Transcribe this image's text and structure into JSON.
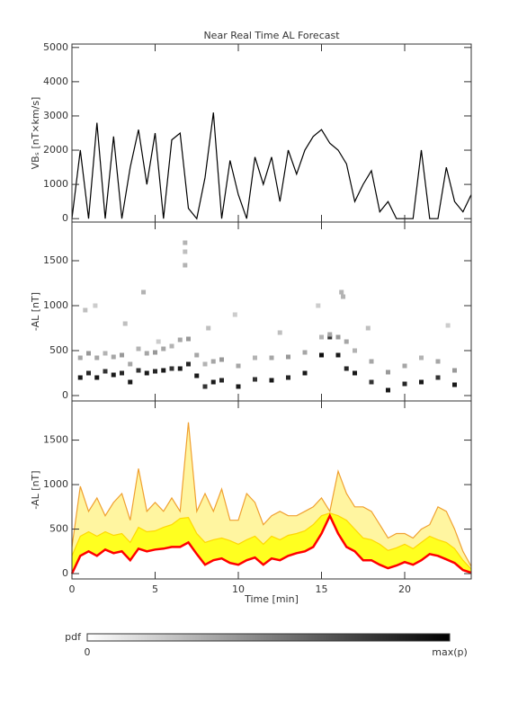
{
  "chart_data": [
    {
      "type": "line",
      "title": "Near Real Time AL Forecast",
      "y_label": "VBₛ [nT×km/s]",
      "xlim": [
        0,
        24
      ],
      "ylim": [
        -100,
        5100
      ],
      "yticks": [
        0,
        1000,
        2000,
        3000,
        4000,
        5000
      ],
      "color": "#000000",
      "x": [
        0,
        0.5,
        1,
        1.5,
        2,
        2.5,
        3,
        3.5,
        4,
        4.5,
        5,
        5.5,
        6,
        6.5,
        7,
        7.5,
        8,
        8.5,
        9,
        9.5,
        10,
        10.5,
        11,
        11.5,
        12,
        12.5,
        13,
        13.5,
        14,
        14.5,
        15,
        15.5,
        16,
        16.5,
        17,
        17.5,
        18,
        18.5,
        19,
        19.5,
        20,
        20.5,
        21,
        21.5,
        22,
        22.5,
        23,
        23.5,
        24
      ],
      "values": [
        0,
        2000,
        0,
        2800,
        0,
        2400,
        0,
        1500,
        2600,
        1000,
        2500,
        0,
        2300,
        2500,
        300,
        0,
        1200,
        3100,
        0,
        1700,
        700,
        0,
        1800,
        1000,
        1800,
        500,
        2000,
        1300,
        2000,
        2400,
        2600,
        2200,
        2000,
        1600,
        500,
        1000,
        1400,
        200,
        500,
        0,
        0,
        0,
        2000,
        0,
        0,
        1500,
        500,
        200,
        700
      ]
    },
    {
      "type": "scatter",
      "y_label": "-AL [nT]",
      "xlim": [
        0,
        24
      ],
      "ylim": [
        -60,
        1930
      ],
      "yticks": [
        0,
        500,
        1000,
        1500
      ],
      "x": [
        0.5,
        1,
        1.5,
        2,
        2.5,
        3,
        3.5,
        4,
        4.5,
        5,
        5.5,
        6,
        6.5,
        7,
        7.5,
        8,
        8.5,
        9,
        10,
        11,
        12,
        13,
        14,
        15,
        15.5,
        16,
        16.5,
        17,
        18,
        19,
        20,
        21,
        22,
        23,
        0.5,
        1,
        1.5,
        2,
        2.5,
        3,
        3.5,
        4,
        4.5,
        5,
        5.5,
        6,
        6.5,
        7,
        7.5,
        8,
        8.5,
        9,
        10,
        11,
        12,
        13,
        14,
        15,
        15.5,
        16,
        16.5,
        17,
        18,
        19,
        20,
        21,
        22,
        23,
        0.8,
        1.4,
        3.2,
        4.3,
        6.8,
        6.8,
        6.8,
        9.8,
        12.5,
        14.8,
        16.2,
        16.3,
        17.8,
        22.6,
        5.2,
        8.2
      ],
      "y": [
        200,
        250,
        200,
        270,
        230,
        250,
        150,
        280,
        250,
        270,
        280,
        300,
        300,
        350,
        220,
        100,
        150,
        170,
        100,
        180,
        170,
        200,
        250,
        450,
        650,
        450,
        300,
        250,
        150,
        60,
        130,
        150,
        200,
        120,
        420,
        470,
        420,
        470,
        430,
        450,
        350,
        520,
        470,
        480,
        520,
        550,
        620,
        630,
        450,
        350,
        380,
        400,
        330,
        420,
        420,
        430,
        480,
        650,
        680,
        650,
        600,
        500,
        380,
        260,
        330,
        420,
        380,
        280,
        950,
        1000,
        800,
        1150,
        1700,
        1600,
        1450,
        900,
        700,
        1000,
        1150,
        1100,
        750,
        780,
        600,
        750
      ],
      "weights": [
        0.9,
        0.85,
        0.9,
        0.8,
        0.9,
        0.85,
        0.9,
        0.8,
        0.9,
        0.85,
        0.9,
        0.8,
        0.9,
        0.85,
        0.9,
        0.8,
        0.9,
        0.85,
        0.9,
        0.8,
        0.9,
        0.85,
        0.9,
        0.95,
        0.8,
        0.9,
        0.85,
        0.9,
        0.8,
        0.9,
        0.85,
        0.9,
        0.8,
        0.9,
        0.35,
        0.4,
        0.35,
        0.3,
        0.35,
        0.4,
        0.35,
        0.3,
        0.35,
        0.4,
        0.35,
        0.3,
        0.35,
        0.4,
        0.35,
        0.3,
        0.35,
        0.4,
        0.35,
        0.3,
        0.35,
        0.4,
        0.35,
        0.3,
        0.35,
        0.4,
        0.35,
        0.3,
        0.35,
        0.4,
        0.35,
        0.3,
        0.35,
        0.4,
        0.25,
        0.2,
        0.25,
        0.3,
        0.3,
        0.25,
        0.3,
        0.2,
        0.25,
        0.2,
        0.3,
        0.3,
        0.25,
        0.2,
        0.2,
        0.25
      ],
      "colorbar": {
        "label": "pdf",
        "min_label": "0",
        "max_label": "max(p)"
      }
    },
    {
      "type": "line",
      "y_label": "-AL [nT]",
      "x_label": "Time [min]",
      "xlim": [
        0,
        24
      ],
      "ylim": [
        -60,
        1940
      ],
      "yticks": [
        0,
        500,
        1000,
        1500
      ],
      "xticks": [
        0,
        5,
        10,
        15,
        20
      ],
      "x": [
        0,
        0.5,
        1,
        1.5,
        2,
        2.5,
        3,
        3.5,
        4,
        4.5,
        5,
        5.5,
        6,
        6.5,
        7,
        7.5,
        8,
        8.5,
        9,
        9.5,
        10,
        10.5,
        11,
        11.5,
        12,
        12.5,
        13,
        13.5,
        14,
        14.5,
        15,
        15.5,
        16,
        16.5,
        17,
        17.5,
        18,
        18.5,
        19,
        19.5,
        20,
        20.5,
        21,
        21.5,
        22,
        22.5,
        23,
        23.5,
        24
      ],
      "series": [
        {
          "color": "#f0a030",
          "fill": "#fff5a0",
          "values": [
            300,
            980,
            700,
            850,
            650,
            800,
            900,
            600,
            1180,
            700,
            800,
            700,
            850,
            700,
            1700,
            700,
            900,
            700,
            950,
            600,
            600,
            900,
            800,
            550,
            650,
            700,
            650,
            650,
            700,
            750,
            850,
            700,
            1150,
            900,
            750,
            750,
            700,
            550,
            400,
            450,
            450,
            400,
            500,
            550,
            750,
            700,
            500,
            250,
            80
          ]
        },
        {
          "color": "#ffd700",
          "fill": "#ffff20",
          "values": [
            200,
            420,
            470,
            420,
            470,
            430,
            450,
            350,
            520,
            470,
            480,
            520,
            550,
            620,
            630,
            450,
            350,
            380,
            400,
            370,
            330,
            380,
            420,
            330,
            420,
            380,
            430,
            450,
            480,
            550,
            650,
            680,
            650,
            600,
            500,
            400,
            380,
            330,
            260,
            290,
            330,
            280,
            350,
            420,
            380,
            350,
            280,
            150,
            50
          ]
        },
        {
          "color": "#ff0000",
          "fill": "#ffffff",
          "values": [
            0,
            200,
            250,
            200,
            270,
            230,
            250,
            150,
            280,
            250,
            270,
            280,
            300,
            300,
            350,
            220,
            100,
            150,
            170,
            120,
            100,
            150,
            180,
            100,
            170,
            150,
            200,
            230,
            250,
            300,
            450,
            650,
            450,
            300,
            250,
            150,
            150,
            100,
            60,
            90,
            130,
            100,
            150,
            220,
            200,
            160,
            120,
            40,
            10
          ]
        }
      ]
    }
  ]
}
